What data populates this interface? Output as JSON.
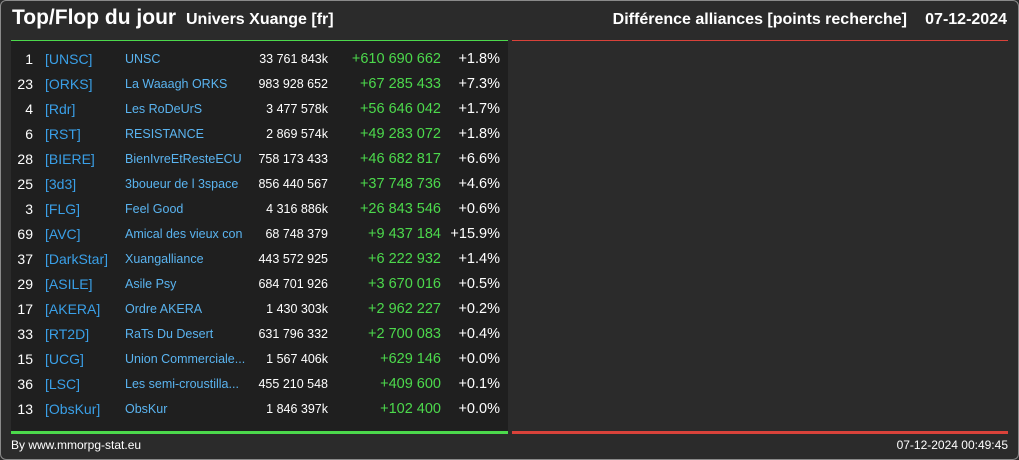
{
  "header": {
    "title": "Top/Flop du jour",
    "subtitle": "Univers Xuange [fr]",
    "right_title": "Différence alliances [points recherche]",
    "date": "07-12-2024"
  },
  "colors": {
    "gain": "#4cd94c",
    "loss": "#d9423a",
    "tag": "#3aa0e8",
    "name": "#5ab4f0"
  },
  "top": [
    {
      "rank": "1",
      "tag": "[UNSC]",
      "name": "UNSC",
      "points": "33 761 843k",
      "diff": "+610 690 662",
      "pct": "+1.8%"
    },
    {
      "rank": "23",
      "tag": "[ORKS]",
      "name": "La Waaagh ORKS",
      "points": "983 928 652",
      "diff": "+67 285 433",
      "pct": "+7.3%"
    },
    {
      "rank": "4",
      "tag": "[Rdr]",
      "name": "Les RoDeUrS",
      "points": "3 477 578k",
      "diff": "+56 646 042",
      "pct": "+1.7%"
    },
    {
      "rank": "6",
      "tag": "[RST]",
      "name": "RESISTANCE",
      "points": "2 869 574k",
      "diff": "+49 283 072",
      "pct": "+1.8%"
    },
    {
      "rank": "28",
      "tag": "[BIERE]",
      "name": "BienIvreEtResteECU",
      "points": "758 173 433",
      "diff": "+46 682 817",
      "pct": "+6.6%"
    },
    {
      "rank": "25",
      "tag": "[3d3]",
      "name": "3boueur de l 3space",
      "points": "856 440 567",
      "diff": "+37 748 736",
      "pct": "+4.6%"
    },
    {
      "rank": "3",
      "tag": "[FLG]",
      "name": "Feel Good",
      "points": "4 316 886k",
      "diff": "+26 843 546",
      "pct": "+0.6%"
    },
    {
      "rank": "69",
      "tag": "[AVC]",
      "name": "Amical des vieux con",
      "points": "68 748 379",
      "diff": "+9 437 184",
      "pct": "+15.9%"
    },
    {
      "rank": "37",
      "tag": "[DarkStar]",
      "name": "Xuangalliance",
      "points": "443 572 925",
      "diff": "+6 222 932",
      "pct": "+1.4%"
    },
    {
      "rank": "29",
      "tag": "[ASILE]",
      "name": "Asile Psy",
      "points": "684 701 926",
      "diff": "+3 670 016",
      "pct": "+0.5%"
    },
    {
      "rank": "17",
      "tag": "[AKERA]",
      "name": "Ordre AKERA",
      "points": "1 430 303k",
      "diff": "+2 962 227",
      "pct": "+0.2%"
    },
    {
      "rank": "33",
      "tag": "[RT2D]",
      "name": "RaTs Du Desert",
      "points": "631 796 332",
      "diff": "+2 700 083",
      "pct": "+0.4%"
    },
    {
      "rank": "15",
      "tag": "[UCG]",
      "name": "Union Commerciale...",
      "points": "1 567 406k",
      "diff": "+629 146",
      "pct": "+0.0%"
    },
    {
      "rank": "36",
      "tag": "[LSC]",
      "name": "Les semi-croustilla...",
      "points": "455 210 548",
      "diff": "+409 600",
      "pct": "+0.1%"
    },
    {
      "rank": "13",
      "tag": "[ObsKur]",
      "name": "ObsKur",
      "points": "1 846 397k",
      "diff": "+102 400",
      "pct": "+0.0%"
    }
  ],
  "footer": {
    "credit": "By www.mmorpg-stat.eu",
    "timestamp": "07-12-2024 00:49:45"
  }
}
